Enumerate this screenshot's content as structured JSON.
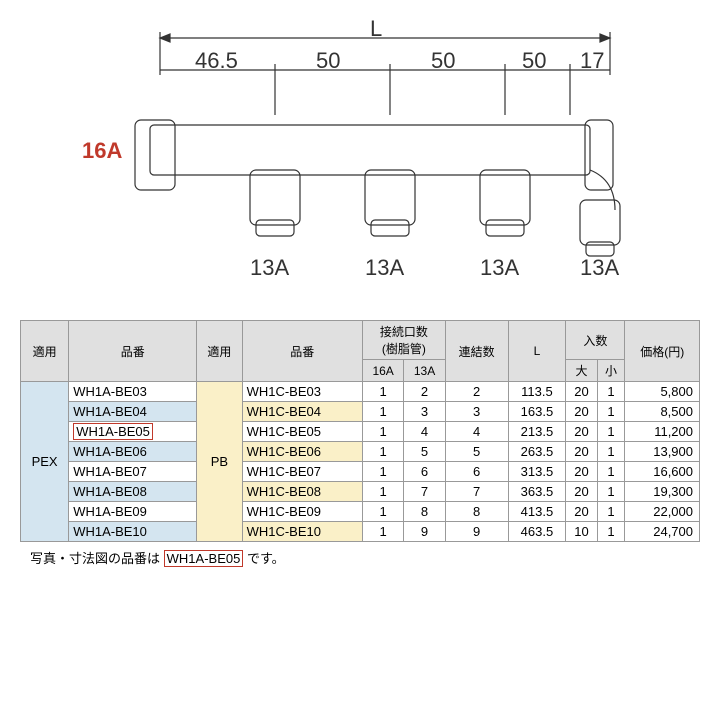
{
  "diagram": {
    "top_label": "L",
    "dims": [
      "46.5",
      "50",
      "50",
      "50",
      "17"
    ],
    "left_label": "16A",
    "bottom_labels": [
      "13A",
      "13A",
      "13A",
      "13A"
    ],
    "left_color": "#c0392b",
    "stroke": "#333333"
  },
  "table": {
    "headers": {
      "apply1": "適用",
      "part1": "品番",
      "apply2": "適用",
      "part2": "品番",
      "conn": "接続口数\n(樹脂管)",
      "conn16": "16A",
      "conn13": "13A",
      "link": "連結数",
      "L": "L",
      "qty": "入数",
      "qty_big": "大",
      "qty_small": "小",
      "price": "価格(円)"
    },
    "apply1_val": "PEX",
    "apply2_val": "PB",
    "rows": [
      {
        "p1": "WH1A-BE03",
        "p2": "WH1C-BE03",
        "c16": "1",
        "c13": "2",
        "link": "2",
        "L": "113.5",
        "big": "20",
        "small": "1",
        "price": "5,800",
        "shade": false,
        "box": false
      },
      {
        "p1": "WH1A-BE04",
        "p2": "WH1C-BE04",
        "c16": "1",
        "c13": "3",
        "link": "3",
        "L": "163.5",
        "big": "20",
        "small": "1",
        "price": "8,500",
        "shade": true,
        "box": false
      },
      {
        "p1": "WH1A-BE05",
        "p2": "WH1C-BE05",
        "c16": "1",
        "c13": "4",
        "link": "4",
        "L": "213.5",
        "big": "20",
        "small": "1",
        "price": "11,200",
        "shade": false,
        "box": true
      },
      {
        "p1": "WH1A-BE06",
        "p2": "WH1C-BE06",
        "c16": "1",
        "c13": "5",
        "link": "5",
        "L": "263.5",
        "big": "20",
        "small": "1",
        "price": "13,900",
        "shade": true,
        "box": false
      },
      {
        "p1": "WH1A-BE07",
        "p2": "WH1C-BE07",
        "c16": "1",
        "c13": "6",
        "link": "6",
        "L": "313.5",
        "big": "20",
        "small": "1",
        "price": "16,600",
        "shade": false,
        "box": false
      },
      {
        "p1": "WH1A-BE08",
        "p2": "WH1C-BE08",
        "c16": "1",
        "c13": "7",
        "link": "7",
        "L": "363.5",
        "big": "20",
        "small": "1",
        "price": "19,300",
        "shade": true,
        "box": false
      },
      {
        "p1": "WH1A-BE09",
        "p2": "WH1C-BE09",
        "c16": "1",
        "c13": "8",
        "link": "8",
        "L": "413.5",
        "big": "20",
        "small": "1",
        "price": "22,000",
        "shade": false,
        "box": false
      },
      {
        "p1": "WH1A-BE10",
        "p2": "WH1C-BE10",
        "c16": "1",
        "c13": "9",
        "link": "9",
        "L": "463.5",
        "big": "10",
        "small": "1",
        "price": "24,700",
        "shade": true,
        "box": false
      }
    ]
  },
  "note": {
    "prefix": "写真・寸法図の品番は",
    "highlight": "WH1A-BE05",
    "suffix": "です。"
  }
}
